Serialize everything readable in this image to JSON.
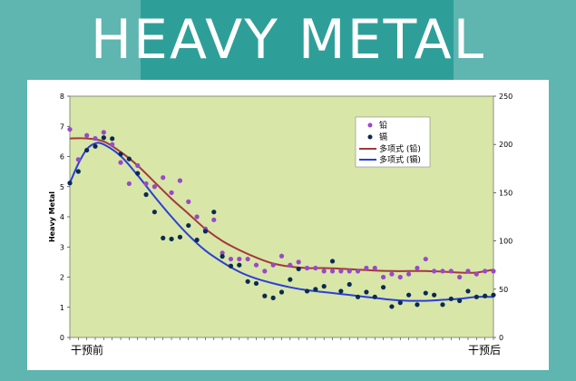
{
  "page": {
    "title": "HEAVY METAL"
  },
  "chart_data": {
    "type": "scatter",
    "ylabel": "Heavy Metal",
    "ylim": [
      0,
      8
    ],
    "y2lim": [
      0,
      250
    ],
    "yticks": [
      0,
      1,
      2,
      3,
      4,
      5,
      6,
      7,
      8
    ],
    "y2ticks": [
      0,
      50,
      100,
      150,
      200,
      250
    ],
    "xlim": [
      0,
      50
    ],
    "x_categories": [
      "干预前",
      "干预后"
    ],
    "grid": false,
    "legend_position": "top-right",
    "colors": {
      "plot_bg": "#d8e6a8",
      "lead": "#9a48c8",
      "cadmium": "#0b2a52",
      "lead_fit": "#a23a3a",
      "cadmium_fit": "#2b3fd8"
    },
    "series": [
      {
        "name": "铅",
        "kind": "scatter",
        "axis": "left",
        "x": [
          0,
          1,
          2,
          3,
          4,
          5,
          6,
          7,
          8,
          9,
          10,
          11,
          12,
          13,
          14,
          15,
          16,
          17,
          18,
          19,
          20,
          21,
          22,
          23,
          24,
          25,
          26,
          27,
          28,
          29,
          30,
          31,
          32,
          33,
          34,
          35,
          36,
          37,
          38,
          39,
          40,
          41,
          42,
          43,
          44,
          45,
          46,
          47,
          48,
          49,
          50
        ],
        "y": [
          6.9,
          5.9,
          6.7,
          6.6,
          6.8,
          6.4,
          5.8,
          5.1,
          5.7,
          5.1,
          5.0,
          5.3,
          4.8,
          5.2,
          4.5,
          4.0,
          3.6,
          3.9,
          2.8,
          2.6,
          2.6,
          2.6,
          2.4,
          2.2,
          2.4,
          2.7,
          2.4,
          2.5,
          2.3,
          2.3,
          2.2,
          2.2,
          2.2,
          2.2,
          2.2,
          2.3,
          2.3,
          2.0,
          2.1,
          2.0,
          2.1,
          2.3,
          2.6,
          2.2,
          2.2,
          2.2,
          2.0,
          2.2,
          2.1,
          2.2,
          2.2
        ]
      },
      {
        "name": "镉",
        "kind": "scatter",
        "axis": "right",
        "x": [
          0,
          1,
          2,
          3,
          4,
          5,
          6,
          7,
          8,
          9,
          10,
          11,
          12,
          13,
          14,
          15,
          16,
          17,
          18,
          19,
          20,
          21,
          22,
          23,
          24,
          25,
          26,
          27,
          28,
          29,
          30,
          31,
          32,
          33,
          34,
          35,
          36,
          37,
          38,
          39,
          40,
          41,
          42,
          43,
          44,
          45,
          46,
          47,
          48,
          49,
          50
        ],
        "y": [
          160,
          172,
          194,
          198,
          207,
          206,
          190,
          185,
          170,
          148,
          130,
          103,
          102,
          104,
          116,
          101,
          110,
          130,
          84,
          74,
          75,
          58,
          56,
          43,
          41,
          47,
          60,
          71,
          48,
          50,
          53,
          79,
          48,
          55,
          42,
          47,
          42,
          52,
          32,
          36,
          44,
          34,
          46,
          44,
          34,
          40,
          38,
          48,
          42,
          43,
          44
        ]
      },
      {
        "name": "多项式 (铅)",
        "kind": "line",
        "axis": "left",
        "x": [
          0,
          2,
          4,
          6,
          8,
          10,
          12,
          14,
          16,
          18,
          20,
          22,
          24,
          26,
          28,
          30,
          32,
          34,
          36,
          38,
          40,
          42,
          44,
          46,
          48,
          50
        ],
        "y": [
          6.6,
          6.6,
          6.5,
          6.15,
          5.7,
          5.15,
          4.6,
          4.1,
          3.6,
          3.2,
          2.9,
          2.65,
          2.45,
          2.35,
          2.3,
          2.3,
          2.28,
          2.25,
          2.22,
          2.2,
          2.2,
          2.2,
          2.18,
          2.15,
          2.15,
          2.25
        ]
      },
      {
        "name": "多项式 (镉)",
        "kind": "line",
        "axis": "right",
        "x": [
          0,
          1,
          2,
          3,
          4,
          6,
          8,
          10,
          12,
          14,
          16,
          18,
          20,
          22,
          24,
          26,
          28,
          30,
          32,
          34,
          36,
          38,
          40,
          42,
          44,
          46,
          48,
          50
        ],
        "y": [
          160,
          180,
          195,
          201,
          200,
          188,
          168,
          146,
          125,
          106,
          90,
          78,
          68,
          61,
          56,
          52,
          49,
          47,
          45,
          43,
          41,
          39,
          38,
          38,
          39,
          40,
          42,
          42
        ]
      }
    ],
    "legend": [
      "铅",
      "镉",
      "多项式 (铅)",
      "多项式 (镉)"
    ]
  }
}
